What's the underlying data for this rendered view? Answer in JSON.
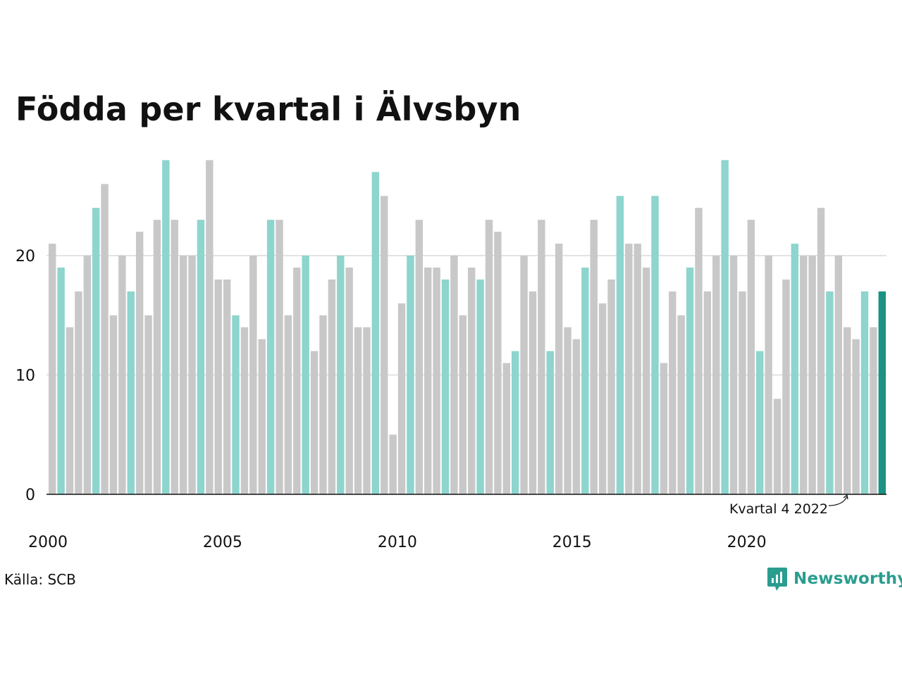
{
  "chart_data": {
    "type": "bar",
    "title": "Födda per kvartal i Älvsbyn",
    "xlabel": "",
    "ylabel": "",
    "ylim": [
      0,
      28
    ],
    "y_ticks": [
      0,
      10,
      20
    ],
    "x_ticks": [
      "2000",
      "2005",
      "2010",
      "2015",
      "2020"
    ],
    "grid": true,
    "start_year": 2000,
    "values": [
      21,
      19,
      14,
      17,
      20,
      24,
      26,
      15,
      20,
      17,
      22,
      15,
      23,
      28,
      23,
      20,
      20,
      23,
      28,
      18,
      18,
      15,
      14,
      20,
      13,
      23,
      23,
      15,
      19,
      20,
      12,
      15,
      18,
      20,
      19,
      14,
      14,
      27,
      25,
      5,
      16,
      20,
      23,
      19,
      19,
      18,
      20,
      15,
      19,
      18,
      23,
      22,
      11,
      12,
      20,
      17,
      23,
      12,
      21,
      14,
      13,
      19,
      23,
      16,
      18,
      25,
      21,
      21,
      19,
      25,
      11,
      17,
      15,
      19,
      24,
      17,
      20,
      28,
      20,
      17,
      23,
      12,
      20,
      8,
      18,
      21,
      20,
      20,
      24,
      17,
      20,
      14,
      13,
      17,
      14,
      17
    ],
    "highlight_quarter": 1,
    "annotation": "Kvartal 4 2022",
    "colors": {
      "default": "#c8c8c8",
      "highlight": "#8dd5cd",
      "latest": "#1b9283",
      "grid": "#e3e3e3",
      "axis": "#111111"
    }
  },
  "footer": {
    "source": "Källa: SCB",
    "brand": "Newsworthy",
    "brand_color": "#2a9d8f"
  }
}
